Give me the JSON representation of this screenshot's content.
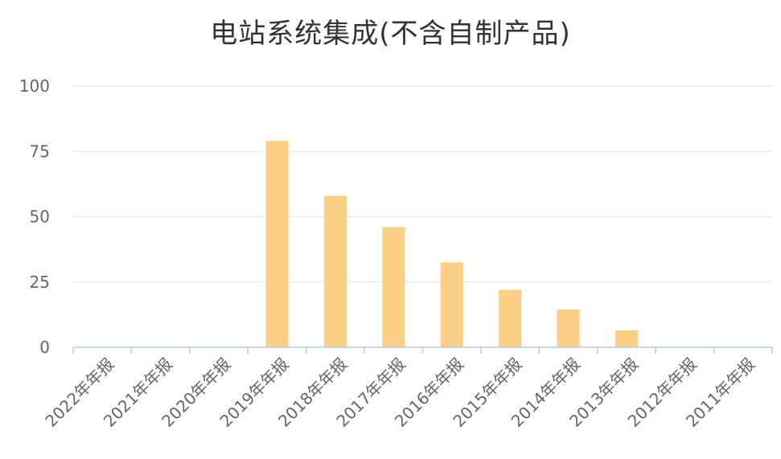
{
  "chart_data": {
    "type": "bar",
    "title": "电站系统集成(不含自制产品)",
    "categories": [
      "2022年年报",
      "2021年年报",
      "2020年年报",
      "2019年年报",
      "2018年年报",
      "2017年年报",
      "2016年年报",
      "2015年年报",
      "2014年年报",
      "2013年年报",
      "2012年年报",
      "2011年年报"
    ],
    "values": [
      0,
      0,
      0,
      79,
      58,
      46,
      32.5,
      22,
      14.5,
      6.5,
      0,
      0
    ],
    "ylim": [
      0,
      100
    ],
    "yticks": [
      0,
      25,
      50,
      75,
      100
    ],
    "grid": true,
    "colors": {
      "bar": "#FBCF85",
      "grid": "#E0E3EA",
      "axis": "#BCC8DC",
      "tick_label": "#666666"
    }
  }
}
